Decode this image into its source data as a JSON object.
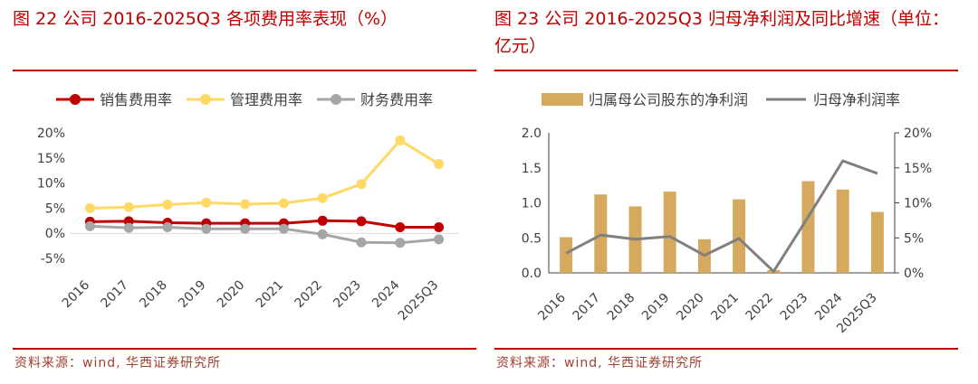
{
  "figure22": {
    "title": "图 22 公司 2016-2025Q3 各项费用率表现（%）",
    "source": "资料来源：wind, 华西证券研究所",
    "chart_data": {
      "type": "line",
      "title": "公司 2016-2025Q3 各项费用率表现（%）",
      "categories": [
        "2016",
        "2017",
        "2018",
        "2019",
        "2020",
        "2021",
        "2022",
        "2023",
        "2024",
        "2025Q3"
      ],
      "yticks": [
        "20%",
        "15%",
        "10%",
        "5%",
        "0%",
        "-5%"
      ],
      "ylim": [
        -5,
        20
      ],
      "legend_position": "top",
      "series": [
        {
          "name": "销售费用率",
          "color": "#c00000",
          "values": [
            2.3,
            2.4,
            2.1,
            2.0,
            2.0,
            2.0,
            2.5,
            2.4,
            1.2,
            1.2
          ]
        },
        {
          "name": "管理费用率",
          "color": "#ffd966",
          "values": [
            5.0,
            5.2,
            5.7,
            6.1,
            5.8,
            6.0,
            7.0,
            9.8,
            18.5,
            13.8
          ]
        },
        {
          "name": "财务费用率",
          "color": "#a6a6a6",
          "values": [
            1.4,
            1.1,
            1.2,
            0.9,
            0.9,
            0.9,
            -0.2,
            -1.8,
            -1.9,
            -1.2
          ]
        }
      ]
    }
  },
  "figure23": {
    "title": "图 23 公司 2016-2025Q3 归母净利润及同比增速（单位：亿元）",
    "source": "资料来源：wind, 华西证券研究所",
    "chart_data": {
      "type": "bar",
      "title": "公司 2016-2025Q3 归母净利润及同比增速（单位：亿元）",
      "categories": [
        "2016",
        "2017",
        "2018",
        "2019",
        "2020",
        "2021",
        "2022",
        "2023",
        "2024",
        "2025Q3"
      ],
      "yticks_left": [
        "2.0",
        "1.5",
        "1.0",
        "0.5",
        "0.0"
      ],
      "yticks_right": [
        "20%",
        "15%",
        "10%",
        "5%",
        "0%"
      ],
      "ylim_left": [
        0,
        2
      ],
      "ylim_right": [
        0,
        20
      ],
      "legend_position": "top",
      "series": [
        {
          "name": "归属母公司股东的净利润",
          "type": "bar",
          "axis": "left",
          "color": "#d6aa5e",
          "values": [
            0.51,
            1.12,
            0.95,
            1.16,
            0.48,
            1.05,
            0.04,
            1.31,
            1.19,
            0.87
          ]
        },
        {
          "name": "归母净利润率",
          "type": "line",
          "axis": "right",
          "color": "#808080",
          "values": [
            2.8,
            5.4,
            4.8,
            5.2,
            2.5,
            4.9,
            0.2,
            8.0,
            16.0,
            14.2
          ]
        }
      ]
    }
  }
}
